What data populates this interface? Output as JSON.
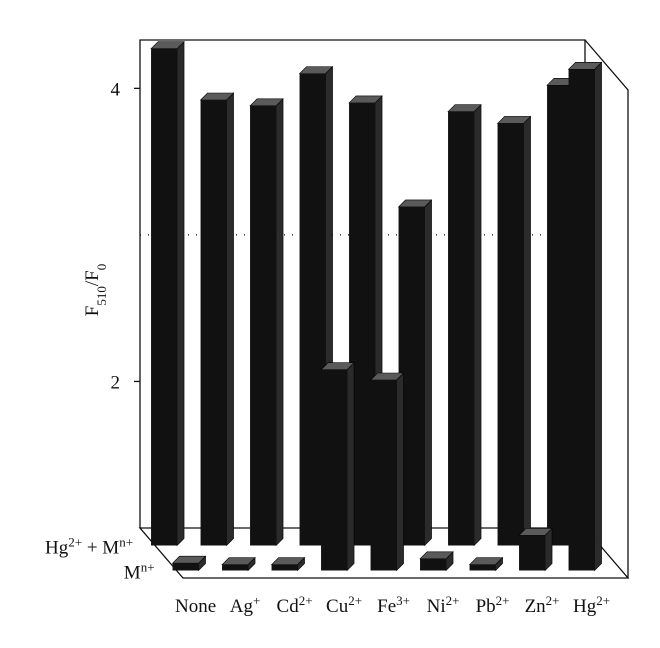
{
  "chart_data": {
    "type": "bar3d",
    "ylabel": [
      "F",
      "510",
      "/F",
      "0"
    ],
    "categories": [
      "None",
      "Ag+",
      "Cd2+",
      "Cu2+",
      "Fe3+",
      "Ni2+",
      "Pb2+",
      "Zn2+",
      "Hg2+"
    ],
    "series": [
      {
        "name": "Hg2+ + Mn+",
        "color": "#111111",
        "values": [
          4.39,
          4.04,
          4.0,
          4.22,
          4.02,
          3.31,
          3.96,
          3.88,
          4.14
        ]
      },
      {
        "name": "Mn+",
        "color": "#111111",
        "values": [
          1.05,
          1.04,
          1.04,
          2.37,
          2.3,
          1.08,
          1.04,
          1.24,
          4.42
        ]
      }
    ],
    "ylim": [
      1,
      4.33
    ],
    "yticks": [
      2,
      4
    ],
    "reference_line": 3
  }
}
